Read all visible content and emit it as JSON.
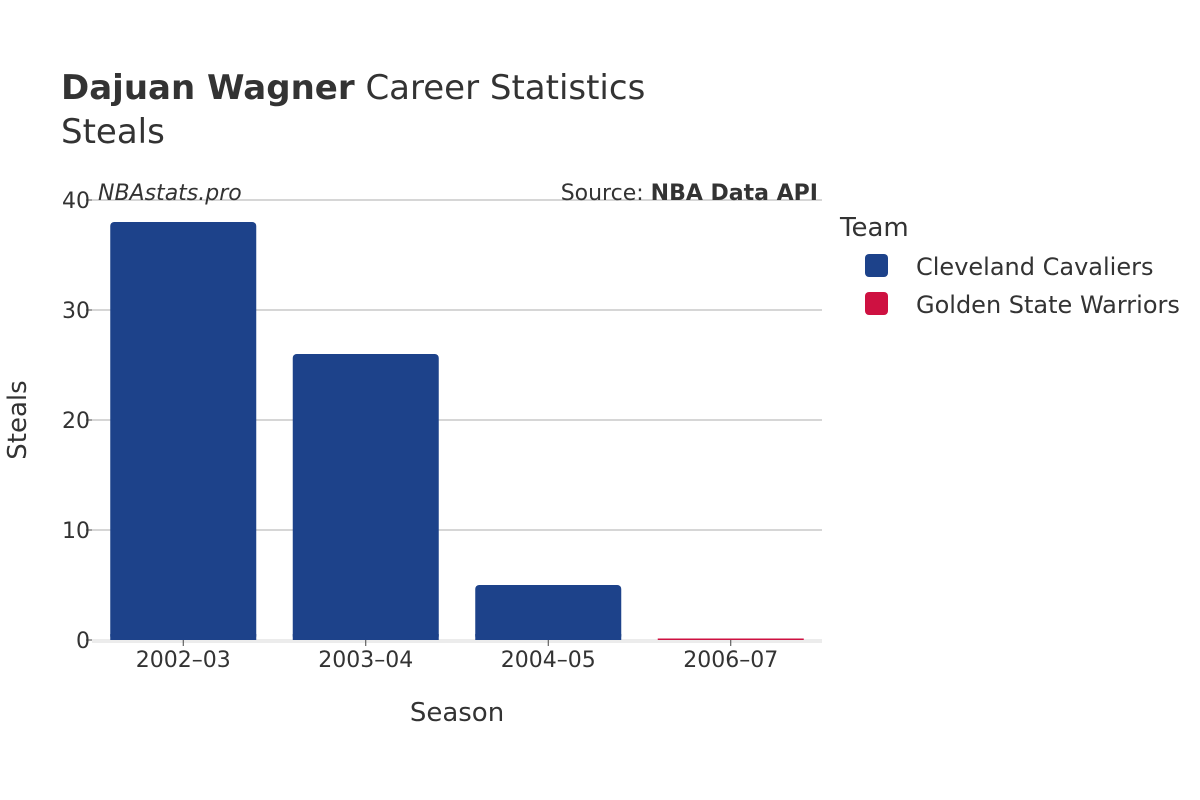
{
  "header": {
    "player": "Dajuan Wagner",
    "title_rest": "Career Statistics",
    "subtitle": "Steals"
  },
  "watermark": "NBAstats.pro",
  "source": {
    "prefix": "Source: ",
    "name": "NBA Data API"
  },
  "legend": {
    "title": "Team",
    "items": [
      {
        "label": "Cleveland Cavaliers",
        "color": "#1d428a"
      },
      {
        "label": "Golden State Warriors",
        "color": "#ce1141"
      }
    ]
  },
  "chart_data": {
    "type": "bar",
    "title": "Dajuan Wagner Career Statistics",
    "subtitle": "Steals",
    "xlabel": "Season",
    "ylabel": "Steals",
    "categories": [
      "2002–03",
      "2003–04",
      "2004–05",
      "2006–07"
    ],
    "series": [
      {
        "name": "Cleveland Cavaliers",
        "color": "#1d428a",
        "values": [
          38,
          26,
          5,
          null
        ]
      },
      {
        "name": "Golden State Warriors",
        "color": "#ce1141",
        "values": [
          null,
          null,
          null,
          0
        ]
      }
    ],
    "ylim": [
      0,
      40
    ],
    "yticks": [
      0,
      10,
      20,
      30,
      40
    ],
    "grid": true,
    "legend_position": "right"
  }
}
